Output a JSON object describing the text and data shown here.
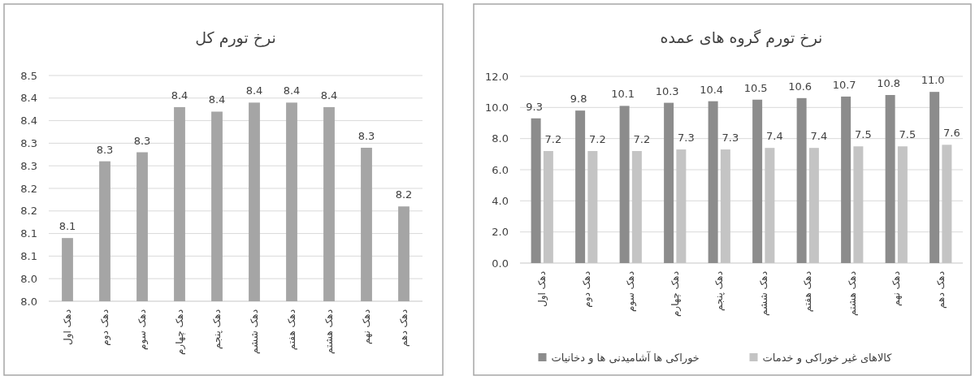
{
  "chart_data": [
    {
      "type": "bar",
      "title": "نرخ تورم کل",
      "categories": [
        "دهک اول",
        "دهک دوم",
        "دهک سوم",
        "دهک چهارم",
        "دهک پنجم",
        "دهک ششم",
        "دهک هفتم",
        "دهک هشتم",
        "دهک نهم",
        "دهک دهم"
      ],
      "series": [
        {
          "color": "#a5a5a5",
          "values": [
            8.14,
            8.31,
            8.33,
            8.43,
            8.42,
            8.44,
            8.44,
            8.43,
            8.34,
            8.21
          ],
          "value_labels": [
            "8.1",
            "8.3",
            "8.3",
            "8.4",
            "8.4",
            "8.4",
            "8.4",
            "8.4",
            "8.3",
            "8.2"
          ]
        }
      ],
      "ylim": [
        8.0,
        8.5
      ],
      "yticks": [
        {
          "value": 8.0,
          "label": "8.0"
        },
        {
          "value": 8.05,
          "label": "8.0"
        },
        {
          "value": 8.1,
          "label": "8.1"
        },
        {
          "value": 8.15,
          "label": "8.1"
        },
        {
          "value": 8.2,
          "label": "8.2"
        },
        {
          "value": 8.25,
          "label": "8.2"
        },
        {
          "value": 8.3,
          "label": "8.3"
        },
        {
          "value": 8.35,
          "label": "8.3"
        },
        {
          "value": 8.4,
          "label": "8.4"
        },
        {
          "value": 8.45,
          "label": "8.4"
        },
        {
          "value": 8.5,
          "label": "8.5"
        }
      ],
      "grid": "y",
      "legend": false
    },
    {
      "type": "bar",
      "title": "نرخ تورم گروه های عمده",
      "categories": [
        "دهک اول",
        "دهک دوم",
        "دهک سوم",
        "دهک چهارم",
        "دهک پنجم",
        "دهک ششم",
        "دهک هفتم",
        "دهک هشتم",
        "دهک نهم",
        "دهک دهم"
      ],
      "series": [
        {
          "name": "خوراکی ها آشامیدنی ها و دخانیات",
          "color": "#8c8c8c",
          "values": [
            9.3,
            9.8,
            10.1,
            10.3,
            10.4,
            10.5,
            10.6,
            10.7,
            10.8,
            11.0
          ],
          "value_labels": [
            "9.3",
            "9.8",
            "10.1",
            "10.3",
            "10.4",
            "10.5",
            "10.6",
            "10.7",
            "10.8",
            "11.0"
          ]
        },
        {
          "name": "کالاهای غیر خوراکی و خدمات",
          "color": "#c4c4c4",
          "values": [
            7.2,
            7.2,
            7.2,
            7.3,
            7.3,
            7.4,
            7.4,
            7.5,
            7.5,
            7.6
          ],
          "value_labels": [
            "7.2",
            "7.2",
            "7.2",
            "7.3",
            "7.3",
            "7.4",
            "7.4",
            "7.5",
            "7.5",
            "7.6"
          ]
        }
      ],
      "ylim": [
        0,
        12
      ],
      "yticks": [
        {
          "value": 0,
          "label": "0.0"
        },
        {
          "value": 2,
          "label": "2.0"
        },
        {
          "value": 4,
          "label": "4.0"
        },
        {
          "value": 6,
          "label": "6.0"
        },
        {
          "value": 8,
          "label": "8.0"
        },
        {
          "value": 10,
          "label": "10.0"
        },
        {
          "value": 12,
          "label": "12.0"
        }
      ],
      "grid": "y",
      "legend": "bottom"
    }
  ]
}
